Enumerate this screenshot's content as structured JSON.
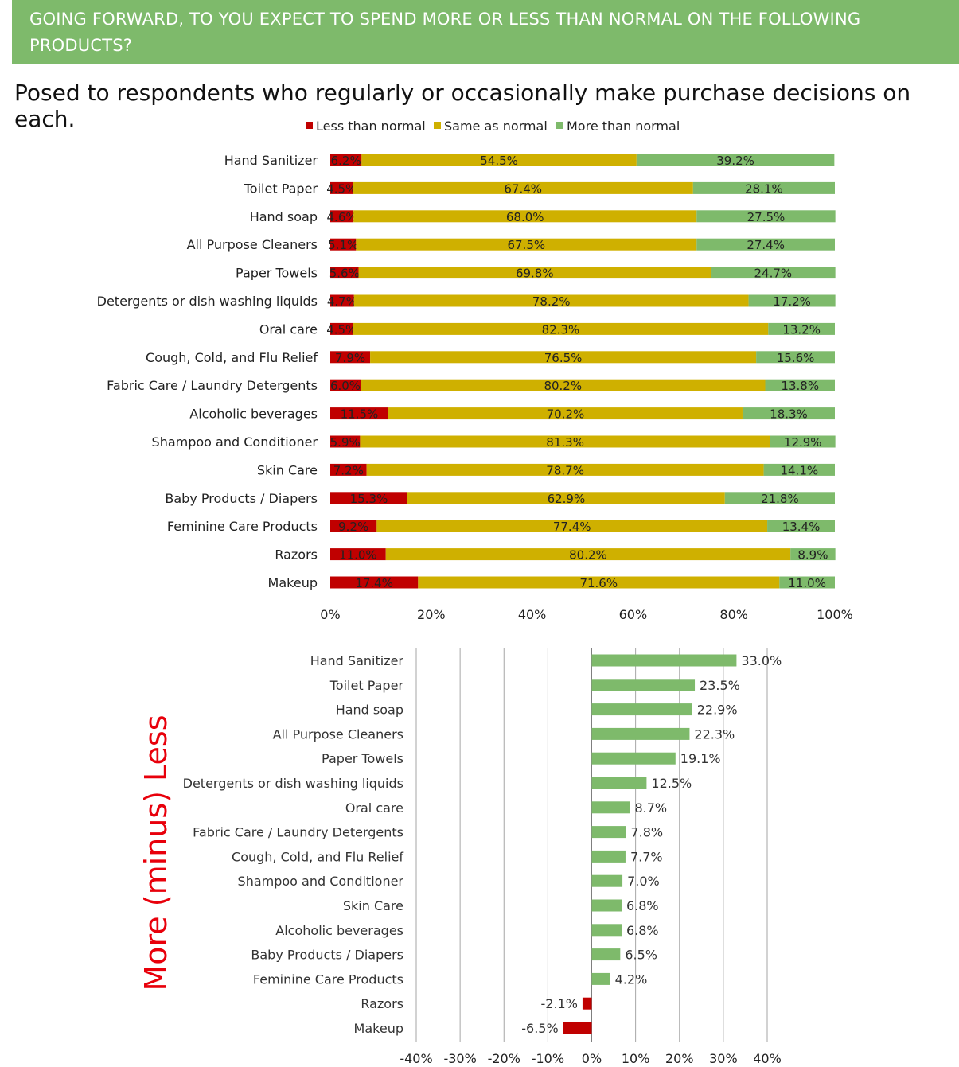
{
  "header": {
    "title": "GOING FORWARD, TO YOU EXPECT TO SPEND MORE OR LESS THAN NORMAL ON THE FOLLOWING PRODUCTS?",
    "subtitle": "Posed to respondents who regularly or occasionally make purchase decisions on each."
  },
  "side_label": "More (minus) Less",
  "colors": {
    "less": "#c00000",
    "same": "#cfb000",
    "more": "#7eba6b",
    "banner": "#7eba6b",
    "side_label": "#e8000b"
  },
  "chart_data": [
    {
      "type": "bar",
      "orientation": "horizontal",
      "stacked": "percent",
      "legend": "top-center",
      "grid": false,
      "xlim": [
        0,
        100
      ],
      "x_ticks": [
        "0%",
        "20%",
        "40%",
        "60%",
        "80%",
        "100%"
      ],
      "categories": [
        "Hand Sanitizer",
        "Toilet Paper",
        "Hand soap",
        "All Purpose Cleaners",
        "Paper Towels",
        "Detergents or dish washing liquids",
        "Oral care",
        "Cough, Cold, and Flu Relief",
        "Fabric Care / Laundry Detergents",
        "Alcoholic beverages",
        "Shampoo and Conditioner",
        "Skin Care",
        "Baby Products / Diapers",
        "Feminine Care Products",
        "Razors",
        "Makeup"
      ],
      "series": [
        {
          "name": "Less than normal",
          "values": [
            6.2,
            4.5,
            4.6,
            5.1,
            5.6,
            4.7,
            4.5,
            7.9,
            6.0,
            11.5,
            5.9,
            7.2,
            15.3,
            9.2,
            11.0,
            17.4
          ],
          "labels": [
            "6.2%",
            "4.5%",
            "4.6%",
            "5.1%",
            "5.6%",
            "4.7%",
            "4.5%",
            "7.9%",
            "6.0%",
            "11.5%",
            "5.9%",
            "7.2%",
            "15.3%",
            "9.2%",
            "11.0%",
            "17.4%"
          ]
        },
        {
          "name": "Same as normal",
          "values": [
            54.5,
            67.4,
            68.0,
            67.5,
            69.8,
            78.2,
            82.3,
            76.5,
            80.2,
            70.2,
            81.3,
            78.7,
            62.9,
            77.4,
            80.2,
            71.6
          ],
          "labels": [
            "54.5%",
            "67.4%",
            "68.0%",
            "67.5%",
            "69.8%",
            "78.2%",
            "82.3%",
            "76.5%",
            "80.2%",
            "70.2%",
            "81.3%",
            "78.7%",
            "62.9%",
            "77.4%",
            "80.2%",
            "71.6%"
          ]
        },
        {
          "name": "More than normal",
          "values": [
            39.2,
            28.1,
            27.5,
            27.4,
            24.7,
            17.2,
            13.2,
            15.6,
            13.8,
            18.3,
            12.9,
            14.1,
            21.8,
            13.4,
            8.9,
            11.0
          ],
          "labels": [
            "39.2%",
            "28.1%",
            "27.5%",
            "27.4%",
            "24.7%",
            "17.2%",
            "13.2%",
            "15.6%",
            "13.8%",
            "18.3%",
            "12.9%",
            "14.1%",
            "21.8%",
            "13.4%",
            "8.9%",
            "11.0%"
          ]
        }
      ]
    },
    {
      "type": "bar",
      "orientation": "horizontal",
      "grid": true,
      "xlim": [
        -40,
        40
      ],
      "x_ticks": [
        "-40%",
        "-30%",
        "-20%",
        "-10%",
        "0%",
        "10%",
        "20%",
        "30%",
        "40%"
      ],
      "categories": [
        "Hand Sanitizer",
        "Toilet Paper",
        "Hand soap",
        "All Purpose Cleaners",
        "Paper Towels",
        "Detergents or dish washing liquids",
        "Oral care",
        "Fabric Care / Laundry Detergents",
        "Cough, Cold, and Flu Relief",
        "Shampoo and Conditioner",
        "Skin Care",
        "Alcoholic beverages",
        "Baby Products / Diapers",
        "Feminine Care Products",
        "Razors",
        "Makeup"
      ],
      "values": [
        33.0,
        23.5,
        22.9,
        22.3,
        19.1,
        12.5,
        8.7,
        7.8,
        7.7,
        7.0,
        6.8,
        6.8,
        6.5,
        4.2,
        -2.1,
        -6.5
      ],
      "labels": [
        "33.0%",
        "23.5%",
        "22.9%",
        "22.3%",
        "19.1%",
        "12.5%",
        "8.7%",
        "7.8%",
        "7.7%",
        "7.0%",
        "6.8%",
        "6.8%",
        "6.5%",
        "4.2%",
        "-2.1%",
        "-6.5%"
      ]
    }
  ]
}
